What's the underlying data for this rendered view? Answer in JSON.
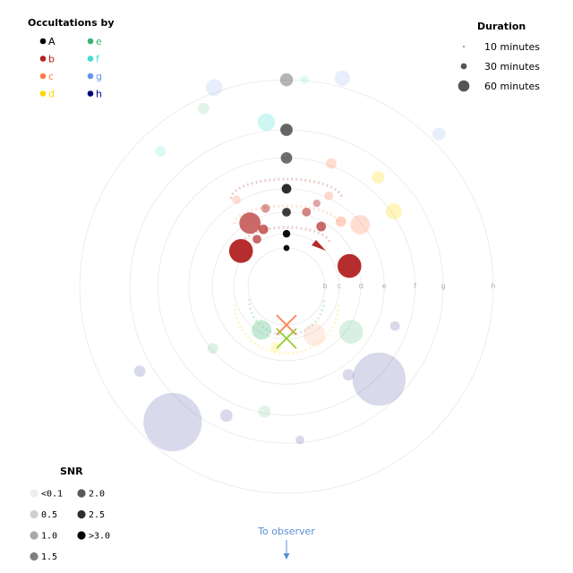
{
  "chart_data": {
    "type": "scatter",
    "title": "",
    "occultations_legend": {
      "title": "Occultations by",
      "items": [
        {
          "label": "A",
          "color": "#000000"
        },
        {
          "label": "e",
          "color": "#3cb371"
        },
        {
          "label": "b",
          "color": "#b22222"
        },
        {
          "label": "f",
          "color": "#40e0d0"
        },
        {
          "label": "c",
          "color": "#ff7f50"
        },
        {
          "label": "g",
          "color": "#6495ed"
        },
        {
          "label": "d",
          "color": "#ffd700"
        },
        {
          "label": "h",
          "color": "#000080"
        }
      ]
    },
    "duration_legend": {
      "title": "Duration",
      "items": [
        {
          "label": "10 minutes",
          "minutes": 10
        },
        {
          "label": "30 minutes",
          "minutes": 30
        },
        {
          "label": "60 minutes",
          "minutes": 60
        }
      ]
    },
    "snr_legend": {
      "title": "SNR",
      "items": [
        {
          "label": "<0.1",
          "snr": 0.1
        },
        {
          "label": "0.5",
          "snr": 0.5
        },
        {
          "label": "1.0",
          "snr": 1.0
        },
        {
          "label": "1.5",
          "snr": 1.5
        },
        {
          "label": "2.0",
          "snr": 2.0
        },
        {
          "label": "2.5",
          "snr": 2.5
        },
        {
          "label": ">3.0",
          "snr": 3.0
        }
      ]
    },
    "orbits": [
      {
        "label": "b",
        "radius": 1.0
      },
      {
        "label": "c",
        "radius": 1.37
      },
      {
        "label": "d",
        "radius": 1.93
      },
      {
        "label": "e",
        "radius": 2.54
      },
      {
        "label": "f",
        "radius": 3.34
      },
      {
        "label": "g",
        "radius": 4.07
      },
      {
        "label": "h",
        "radius": 5.37
      }
    ],
    "observer_label": "To observer",
    "events": [
      {
        "body": "A",
        "angle": 90,
        "r": 1.0,
        "minutes": 4,
        "snr": 3.0
      },
      {
        "body": "A",
        "angle": 90,
        "r": 1.37,
        "minutes": 6,
        "snr": 3.0
      },
      {
        "body": "A",
        "angle": 90,
        "r": 1.93,
        "minutes": 8,
        "snr": 2.3
      },
      {
        "body": "A",
        "angle": 90,
        "r": 2.54,
        "minutes": 10,
        "snr": 2.5
      },
      {
        "body": "A",
        "angle": 90,
        "r": 3.34,
        "minutes": 14,
        "snr": 1.6
      },
      {
        "body": "A",
        "angle": 90,
        "r": 4.07,
        "minutes": 16,
        "snr": 1.7
      },
      {
        "body": "A",
        "angle": 90,
        "r": 5.37,
        "minutes": 18,
        "snr": 0.6
      },
      {
        "body": "b",
        "angle": 18,
        "r": 1.72,
        "minutes": 60,
        "snr": 3.0
      },
      {
        "body": "b",
        "angle": 142,
        "r": 1.5,
        "minutes": 60,
        "snr": 3.0
      },
      {
        "body": "b",
        "angle": 120,
        "r": 1.9,
        "minutes": 48,
        "snr": 2.0
      },
      {
        "body": "b",
        "angle": 60,
        "r": 1.8,
        "minutes": 10,
        "snr": 2.0
      },
      {
        "body": "b",
        "angle": 75,
        "r": 2.0,
        "minutes": 8,
        "snr": 1.5
      },
      {
        "body": "b",
        "angle": 105,
        "r": 2.1,
        "minutes": 8,
        "snr": 1.2
      },
      {
        "body": "b",
        "angle": 112,
        "r": 1.6,
        "minutes": 10,
        "snr": 2.0
      },
      {
        "body": "b",
        "angle": 122,
        "r": 1.45,
        "minutes": 8,
        "snr": 2.0
      },
      {
        "body": "b",
        "angle": 70,
        "r": 2.3,
        "minutes": 6,
        "snr": 1.0
      },
      {
        "body": "c",
        "angle": 40,
        "r": 2.5,
        "minutes": 40,
        "snr": 0.5
      },
      {
        "body": "c",
        "angle": 50,
        "r": 2.2,
        "minutes": 12,
        "snr": 0.8
      },
      {
        "body": "c",
        "angle": 65,
        "r": 2.6,
        "minutes": 8,
        "snr": 0.6
      },
      {
        "body": "c",
        "angle": 70,
        "r": 3.4,
        "minutes": 12,
        "snr": 0.5
      },
      {
        "body": "c",
        "angle": 120,
        "r": 2.6,
        "minutes": 8,
        "snr": 0.5
      },
      {
        "body": "c",
        "angle": -60,
        "r": 1.45,
        "minutes": 52,
        "snr": 0.1
      },
      {
        "body": "d",
        "angle": 35,
        "r": 3.4,
        "minutes": 28,
        "snr": 0.5
      },
      {
        "body": "d",
        "angle": 50,
        "r": 3.7,
        "minutes": 16,
        "snr": 0.5
      },
      {
        "body": "d",
        "angle": -100,
        "r": 1.6,
        "minutes": 12,
        "snr": 0.2
      },
      {
        "body": "e",
        "angle": -35,
        "r": 2.05,
        "minutes": 60,
        "snr": 0.3
      },
      {
        "body": "e",
        "angle": -120,
        "r": 1.3,
        "minutes": 40,
        "snr": 0.6
      },
      {
        "body": "e",
        "angle": -140,
        "r": 2.5,
        "minutes": 12,
        "snr": 0.2
      },
      {
        "body": "e",
        "angle": -100,
        "r": 3.3,
        "minutes": 16,
        "snr": 0.1
      },
      {
        "body": "e",
        "angle": 115,
        "r": 5.1,
        "minutes": 14,
        "snr": 0.1
      },
      {
        "body": "f",
        "angle": 97,
        "r": 4.3,
        "minutes": 32,
        "snr": 0.5
      },
      {
        "body": "f",
        "angle": 133,
        "r": 4.8,
        "minutes": 12,
        "snr": 0.3
      },
      {
        "body": "f",
        "angle": 85,
        "r": 5.4,
        "minutes": 8,
        "snr": 0.1
      },
      {
        "body": "g",
        "angle": 110,
        "r": 5.5,
        "minutes": 30,
        "snr": 0.1
      },
      {
        "body": "g",
        "angle": 75,
        "r": 5.6,
        "minutes": 26,
        "snr": 0.1
      },
      {
        "body": "g",
        "angle": 45,
        "r": 5.6,
        "minutes": 18,
        "snr": 0.1
      },
      {
        "body": "h",
        "angle": -45,
        "r": 3.4,
        "minutes": 300,
        "snr": 0.1
      },
      {
        "body": "h",
        "angle": -130,
        "r": 4.6,
        "minutes": 360,
        "snr": 0.1
      },
      {
        "body": "h",
        "angle": -150,
        "r": 4.4,
        "minutes": 14,
        "snr": 0.1
      },
      {
        "body": "h",
        "angle": -115,
        "r": 3.7,
        "minutes": 16,
        "snr": 0.1
      },
      {
        "body": "h",
        "angle": -55,
        "r": 2.8,
        "minutes": 14,
        "snr": 0.1
      },
      {
        "body": "h",
        "angle": -85,
        "r": 4.0,
        "minutes": 8,
        "snr": 0.1
      },
      {
        "body": "h",
        "angle": -20,
        "r": 3.0,
        "minutes": 10,
        "snr": 0.1
      }
    ]
  }
}
